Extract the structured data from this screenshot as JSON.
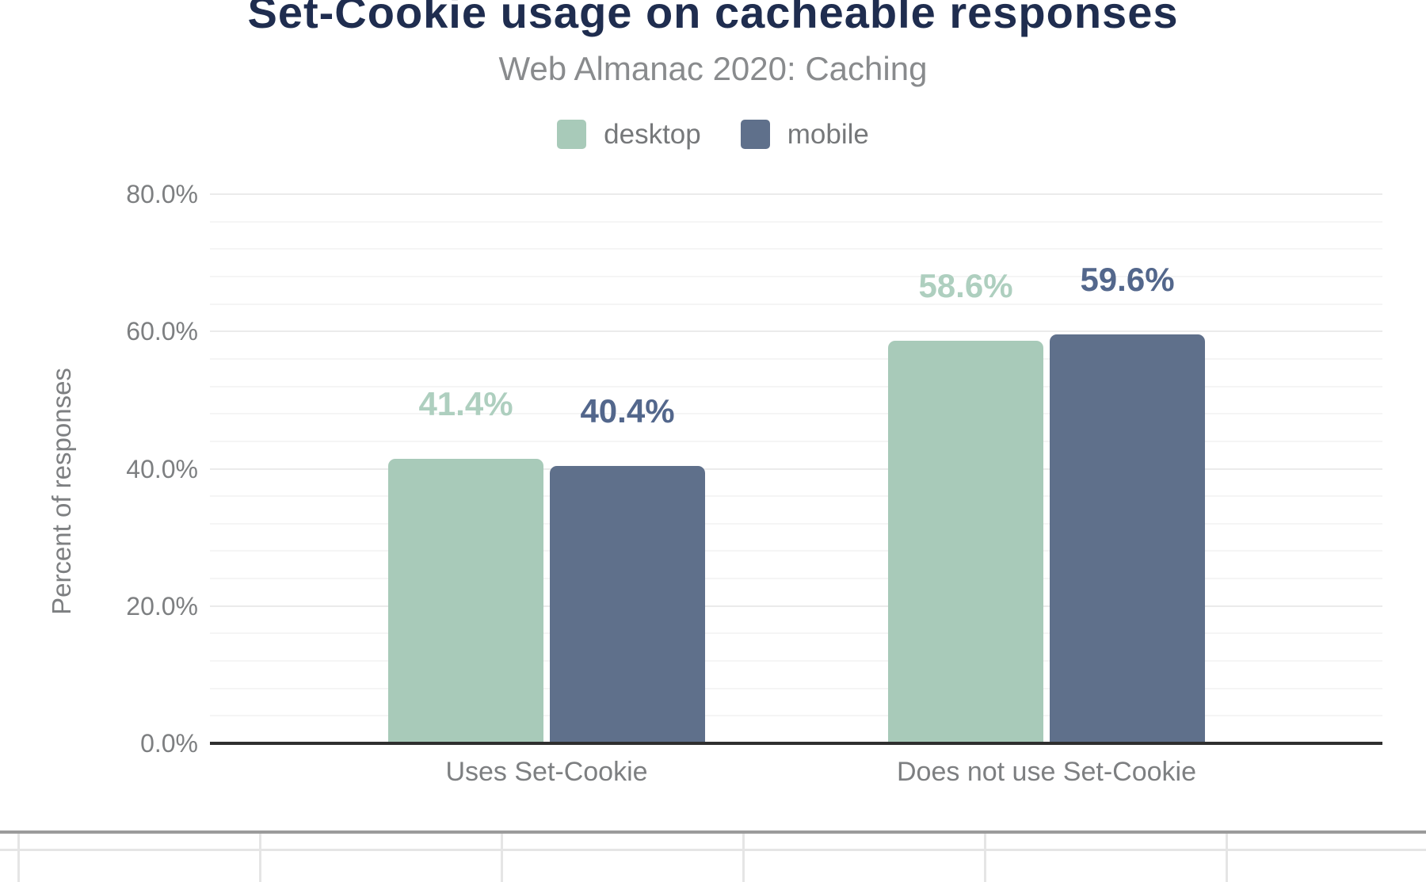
{
  "chart_data": {
    "type": "bar",
    "title": "Set-Cookie usage on cacheable responses",
    "subtitle": "Web Almanac 2020: Caching",
    "categories": [
      "Uses Set-Cookie",
      "Does not use Set-Cookie"
    ],
    "series": [
      {
        "name": "desktop",
        "values": [
          41.4,
          58.6
        ],
        "value_labels": [
          "41.4%",
          "58.6%"
        ],
        "color": "#a8cab9",
        "value_label_color": "#aecfbf"
      },
      {
        "name": "mobile",
        "values": [
          40.4,
          59.6
        ],
        "value_labels": [
          "40.4%",
          "59.6%"
        ],
        "color": "#5f708b",
        "value_label_color": "#53678c"
      }
    ],
    "xlabel": "",
    "ylabel": "Percent of responses",
    "ylim": [
      0,
      80
    ],
    "y_ticks": [
      {
        "value": 80,
        "label": "80.0%"
      },
      {
        "value": 60,
        "label": "60.0%"
      },
      {
        "value": 40,
        "label": "40.0%"
      },
      {
        "value": 20,
        "label": "20.0%"
      },
      {
        "value": 0,
        "label": "0.0%"
      }
    ],
    "grid": "horizontal",
    "minor_grid_step_pct": 4,
    "legend_position": "top-center"
  },
  "colors": {
    "title": "#1f2d4f",
    "subtitle": "#898b8d",
    "legend_text": "#76787a",
    "axis_text": "#7d7f81",
    "baseline": "#2f2f2f",
    "grid_major": "#ebebeb",
    "grid_minor": "#f5f5f5",
    "table_top_border": "#9b9b9b",
    "table_cell_border": "#e5e5e5"
  },
  "footer_table": {
    "visible_rows": [
      [
        "",
        "",
        "",
        "",
        "",
        ""
      ],
      [
        "",
        "",
        "",
        "",
        "",
        ""
      ]
    ]
  }
}
